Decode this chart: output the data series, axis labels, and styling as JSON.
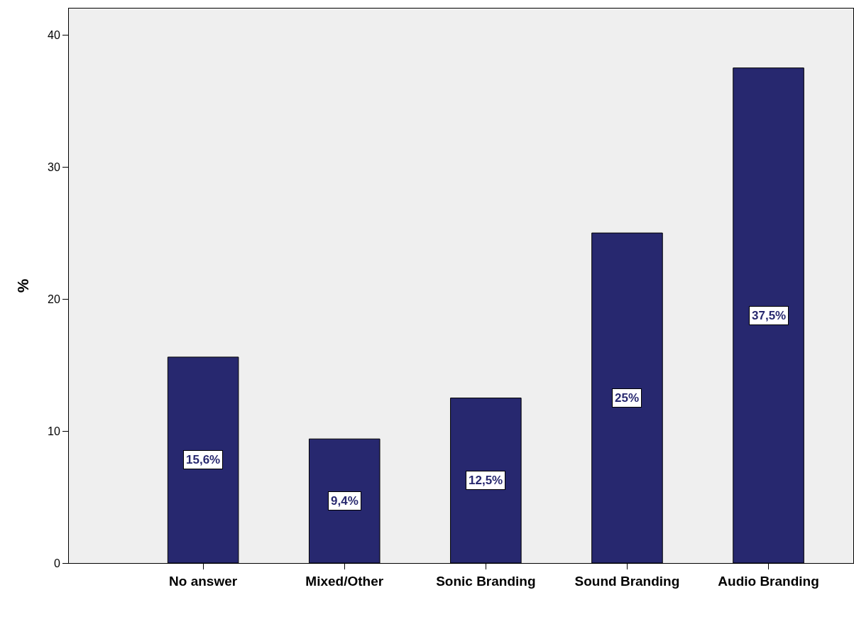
{
  "chart_data": {
    "type": "bar",
    "ylabel": "%",
    "categories": [
      "No answer",
      "Mixed/Other",
      "Sonic Branding",
      "Sound Branding",
      "Audio Branding"
    ],
    "values": [
      15.6,
      9.4,
      12.5,
      25,
      37.5
    ],
    "value_labels": [
      "15,6%",
      "9,4%",
      "12,5%",
      "25%",
      "37,5%"
    ],
    "color": "#27286f",
    "ylim": [
      0,
      42
    ],
    "yticks": [
      0,
      10,
      20,
      30,
      40
    ],
    "grid": false
  }
}
